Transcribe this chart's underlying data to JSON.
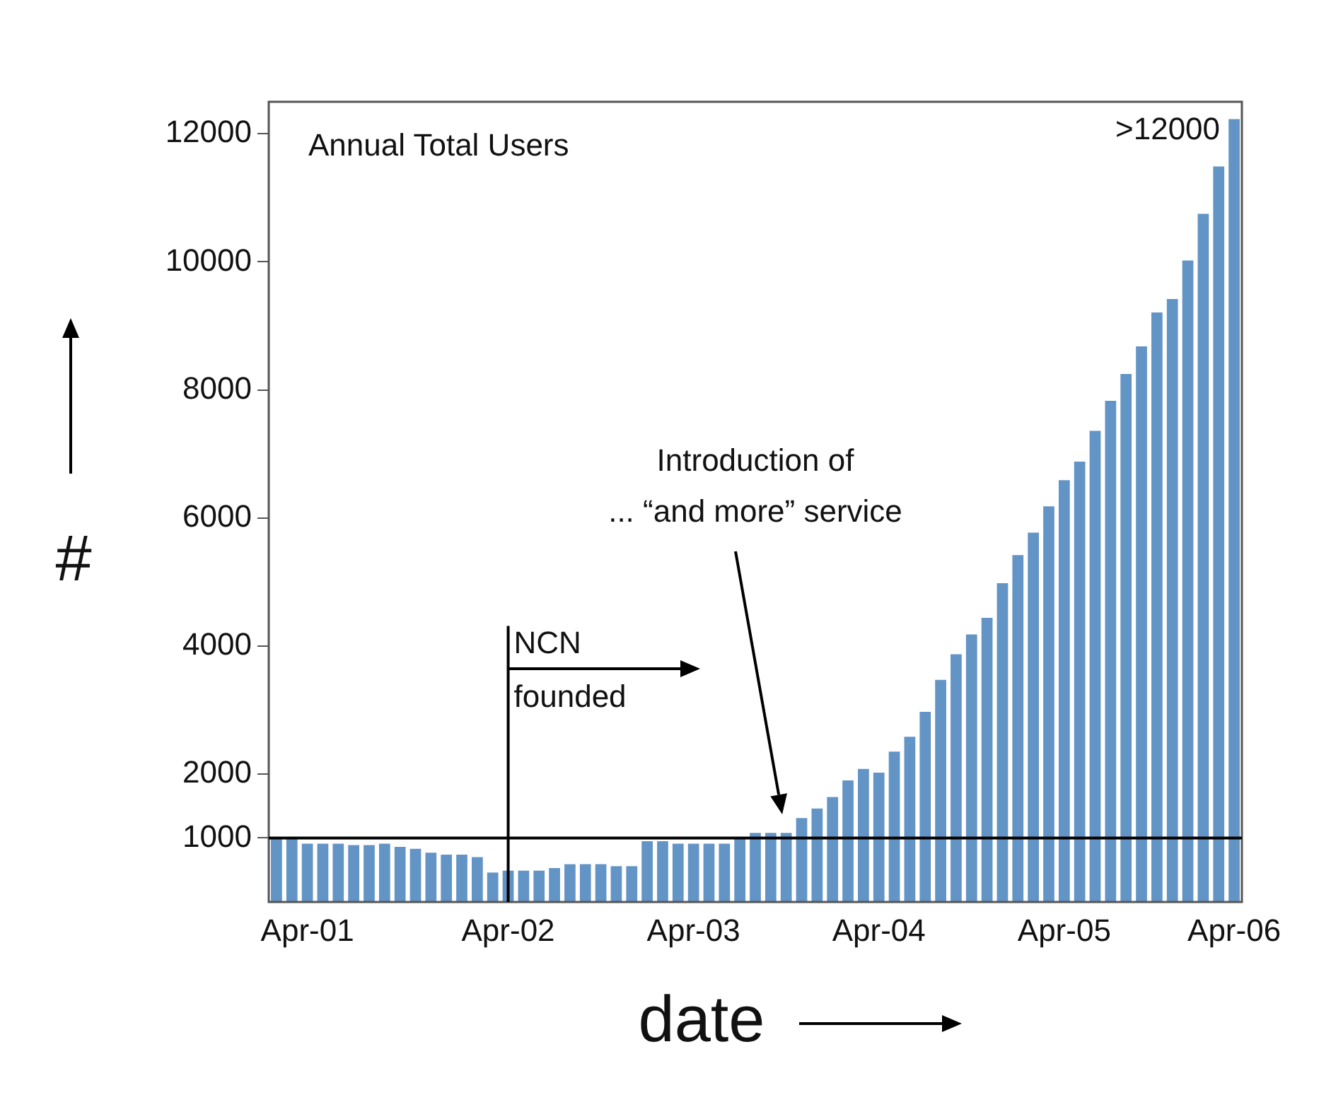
{
  "chart_data": {
    "type": "bar",
    "title": "Annual Total Users",
    "xlabel": "date",
    "ylabel": "#",
    "categories": [
      null,
      null,
      "Apr-01",
      null,
      null,
      null,
      null,
      null,
      null,
      null,
      null,
      null,
      null,
      null,
      null,
      "Apr-02",
      null,
      null,
      null,
      null,
      null,
      null,
      null,
      null,
      null,
      null,
      null,
      "Apr-03",
      null,
      null,
      null,
      null,
      null,
      null,
      null,
      null,
      null,
      null,
      null,
      "Apr-04",
      null,
      null,
      null,
      null,
      null,
      null,
      null,
      null,
      null,
      null,
      null,
      "Apr-05",
      null,
      null,
      null,
      null,
      null,
      null,
      null,
      null,
      null,
      null,
      "Apr-06"
    ],
    "values": [
      1000,
      1000,
      910,
      910,
      910,
      890,
      890,
      910,
      860,
      830,
      770,
      740,
      740,
      700,
      460,
      490,
      490,
      490,
      530,
      590,
      590,
      590,
      560,
      560,
      950,
      950,
      910,
      910,
      910,
      910,
      990,
      1080,
      1080,
      1080,
      1310,
      1460,
      1640,
      1900,
      2080,
      2020,
      2350,
      2580,
      2970,
      3470,
      3870,
      4180,
      4440,
      4980,
      5420,
      5770,
      6180,
      6590,
      6880,
      7360,
      7830,
      8250,
      8680,
      9210,
      9420,
      10020,
      10750,
      11490,
      12230
    ],
    "color": "#6394c6",
    "ylim": [
      0,
      12500
    ],
    "yticks": [
      1000,
      2000,
      4000,
      6000,
      8000,
      10000,
      12000
    ],
    "grid": false,
    "legend": false,
    "ref_lines": [
      {
        "axis": "y",
        "value": 1000,
        "color": "#000000"
      },
      {
        "axis": "x",
        "value": "Apr-02",
        "label": "NCN\nfounded",
        "color": "#000000"
      }
    ],
    "annotations": [
      "Introduction of\n... “and more” service",
      {
        "text": ">12000",
        "x": "Apr-06",
        "y": 12230
      }
    ]
  }
}
